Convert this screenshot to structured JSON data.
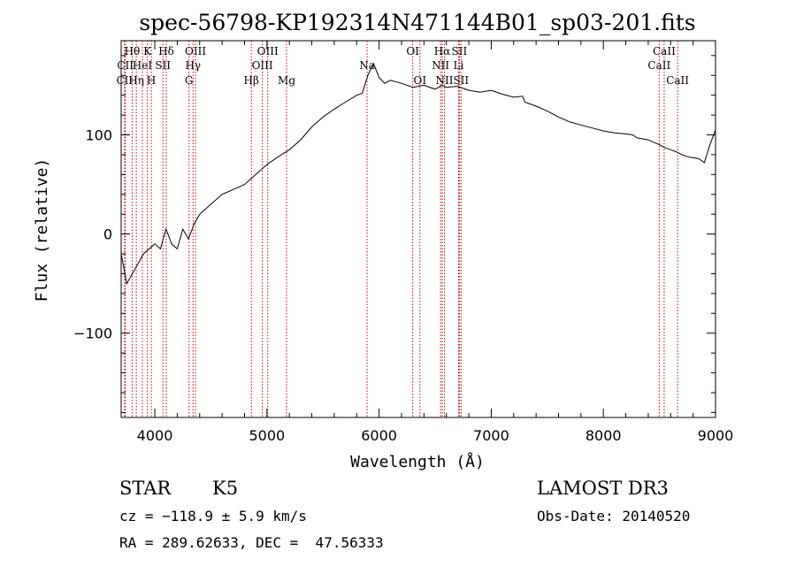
{
  "chart_data": {
    "type": "line",
    "title": "spec-56798-KP192314N471144B01_sp03-201.fits",
    "xlabel": "Wavelength (Å)",
    "ylabel": "Flux (relative)",
    "xlim": [
      3700,
      9000
    ],
    "ylim": [
      -185,
      195
    ],
    "xticks": [
      4000,
      5000,
      6000,
      7000,
      8000,
      9000
    ],
    "yticks": [
      -100,
      0,
      100
    ],
    "grid": false,
    "line_color": "#000000",
    "marker_color": "#cc0000",
    "spectrum": {
      "name": "flux",
      "x": [
        3700,
        3750,
        3800,
        3850,
        3900,
        3950,
        4000,
        4050,
        4100,
        4150,
        4200,
        4250,
        4300,
        4350,
        4400,
        4450,
        4500,
        4600,
        4700,
        4800,
        4900,
        5000,
        5100,
        5200,
        5300,
        5400,
        5500,
        5600,
        5700,
        5800,
        5850,
        5900,
        5950,
        6000,
        6050,
        6100,
        6200,
        6300,
        6400,
        6500,
        6560,
        6600,
        6700,
        6800,
        6900,
        7000,
        7100,
        7200,
        7280,
        7300,
        7400,
        7500,
        7600,
        7700,
        7800,
        7900,
        8000,
        8100,
        8200,
        8260,
        8300,
        8400,
        8500,
        8550,
        8600,
        8650,
        8700,
        8750,
        8800,
        8850,
        8900,
        8950,
        9000
      ],
      "y": [
        -20,
        -50,
        -40,
        -30,
        -20,
        -15,
        -10,
        -15,
        5,
        -10,
        -15,
        5,
        -5,
        10,
        20,
        25,
        30,
        40,
        45,
        50,
        60,
        70,
        78,
        85,
        95,
        108,
        118,
        126,
        133,
        140,
        142,
        160,
        172,
        158,
        152,
        155,
        152,
        148,
        150,
        146,
        150,
        148,
        149,
        145,
        143,
        145,
        141,
        138,
        139,
        133,
        129,
        124,
        118,
        113,
        110,
        107,
        104,
        102,
        101,
        100,
        97,
        95,
        90,
        87,
        85,
        83,
        80,
        78,
        77,
        76,
        72,
        90,
        105
      ]
    },
    "line_markers": [
      {
        "label": "Hθ",
        "x": 3798,
        "row": 1
      },
      {
        "label": "CII",
        "x": 3737,
        "row": 2
      },
      {
        "label": "CII",
        "x": 3730,
        "row": 3
      },
      {
        "label": "K",
        "x": 3934,
        "row": 1
      },
      {
        "label": "HeI",
        "x": 3889,
        "row": 2
      },
      {
        "label": "Hη",
        "x": 3835,
        "row": 3
      },
      {
        "label": "Hδ",
        "x": 4102,
        "row": 1
      },
      {
        "label": "SII",
        "x": 4072,
        "row": 2
      },
      {
        "label": "H",
        "x": 3969,
        "row": 3
      },
      {
        "label": "OIII",
        "x": 4363,
        "row": 1
      },
      {
        "label": "Hγ",
        "x": 4341,
        "row": 2
      },
      {
        "label": "G",
        "x": 4305,
        "row": 3
      },
      {
        "label": "OIII",
        "x": 5007,
        "row": 1
      },
      {
        "label": "OIII",
        "x": 4959,
        "row": 2
      },
      {
        "label": "Hβ",
        "x": 4861,
        "row": 3
      },
      {
        "label": "Mg",
        "x": 5175,
        "row": 3
      },
      {
        "label": "Na",
        "x": 5893,
        "row": 2
      },
      {
        "label": "OI",
        "x": 6300,
        "row": 1
      },
      {
        "label": "OI",
        "x": 6364,
        "row": 3
      },
      {
        "label": "Hα",
        "x": 6563,
        "row": 1
      },
      {
        "label": "SII",
        "x": 6716,
        "row": 1
      },
      {
        "label": "NII",
        "x": 6548,
        "row": 2
      },
      {
        "label": "Li",
        "x": 6708,
        "row": 2
      },
      {
        "label": "NII",
        "x": 6583,
        "row": 3
      },
      {
        "label": "SII",
        "x": 6731,
        "row": 3
      },
      {
        "label": "CaII",
        "x": 8542,
        "row": 1
      },
      {
        "label": "CaII",
        "x": 8498,
        "row": 2
      },
      {
        "label": "CaII",
        "x": 8662,
        "row": 3
      }
    ]
  },
  "info": {
    "object_class": "STAR",
    "subclass": "K5",
    "survey": "LAMOST DR3",
    "redshift": "cz = −118.9 ± 5.9 km/s",
    "obs_date": "Obs-Date: 20140520",
    "coords": "RA = 289.62633, DEC =  47.56333"
  }
}
